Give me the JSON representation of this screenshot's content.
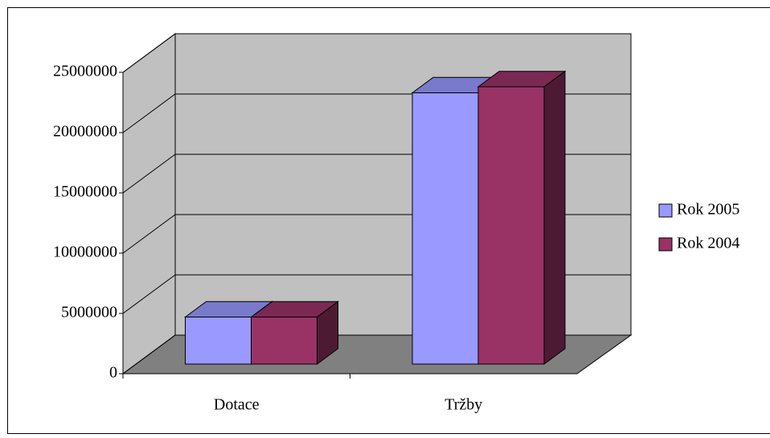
{
  "chart_data": {
    "type": "bar3d",
    "categories": [
      "Dotace",
      "Tržby"
    ],
    "series": [
      {
        "name": "Rok 2005",
        "color": "#9999ff",
        "values": [
          3900000,
          22500000
        ]
      },
      {
        "name": "Rok 2004",
        "color": "#993366",
        "values": [
          3900000,
          23000000
        ]
      }
    ],
    "ylim": [
      0,
      25000000
    ],
    "yticks": [
      0,
      5000000,
      10000000,
      15000000,
      20000000,
      25000000
    ],
    "grid": true,
    "legend": "right"
  }
}
